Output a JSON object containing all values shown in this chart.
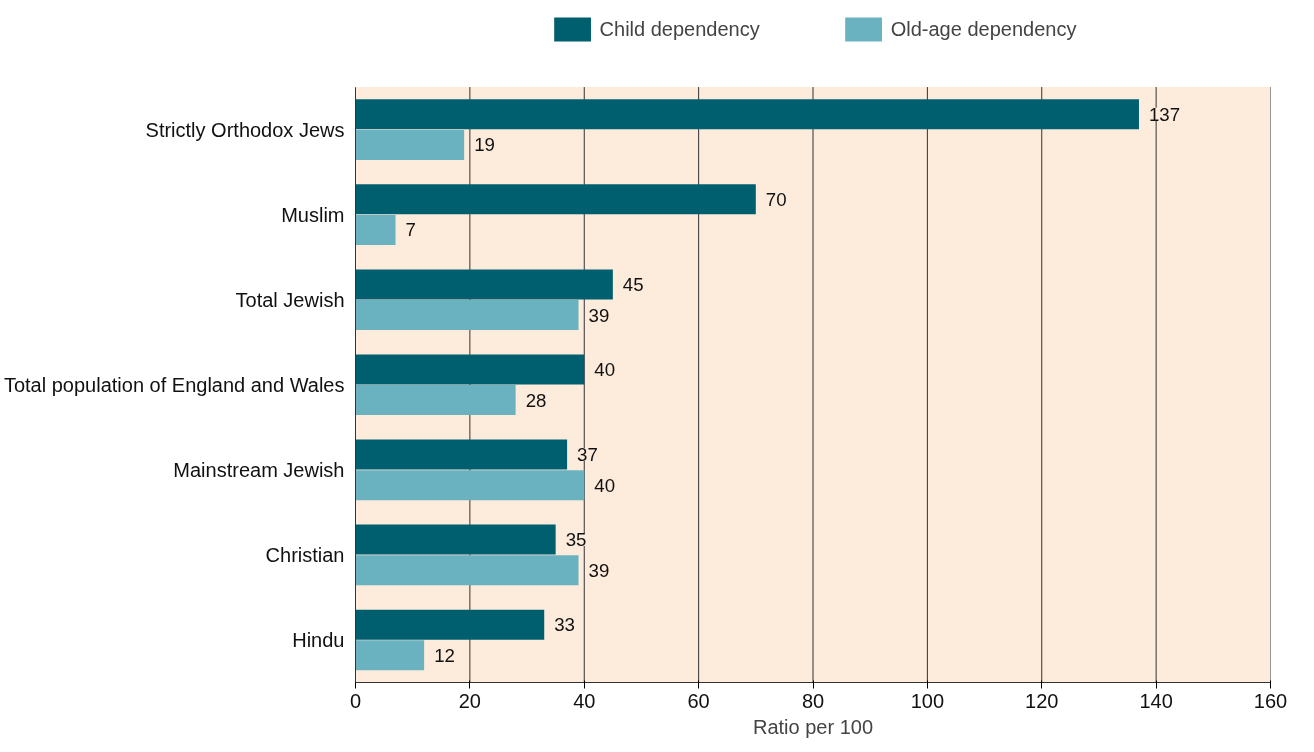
{
  "chart_data": {
    "type": "bar",
    "orientation": "horizontal",
    "xlabel": "Ratio per 100",
    "categories": [
      "Strictly Orthodox Jews",
      "Muslim",
      "Total Jewish",
      "Total population of England and Wales",
      "Mainstream Jewish",
      "Christian",
      "Hindu"
    ],
    "series": [
      {
        "name": "Child dependency",
        "color": "#005f6e",
        "values": [
          137,
          70,
          45,
          40,
          37,
          35,
          33
        ]
      },
      {
        "name": "Old-age dependency",
        "color": "#6ab2bf",
        "values": [
          19,
          7,
          39,
          28,
          40,
          39,
          12
        ]
      }
    ],
    "xlim": [
      0,
      160
    ],
    "xticks": [
      0,
      20,
      40,
      60,
      80,
      100,
      120,
      140,
      160
    ],
    "grid": "x",
    "legend": "top",
    "data_labels": true
  }
}
